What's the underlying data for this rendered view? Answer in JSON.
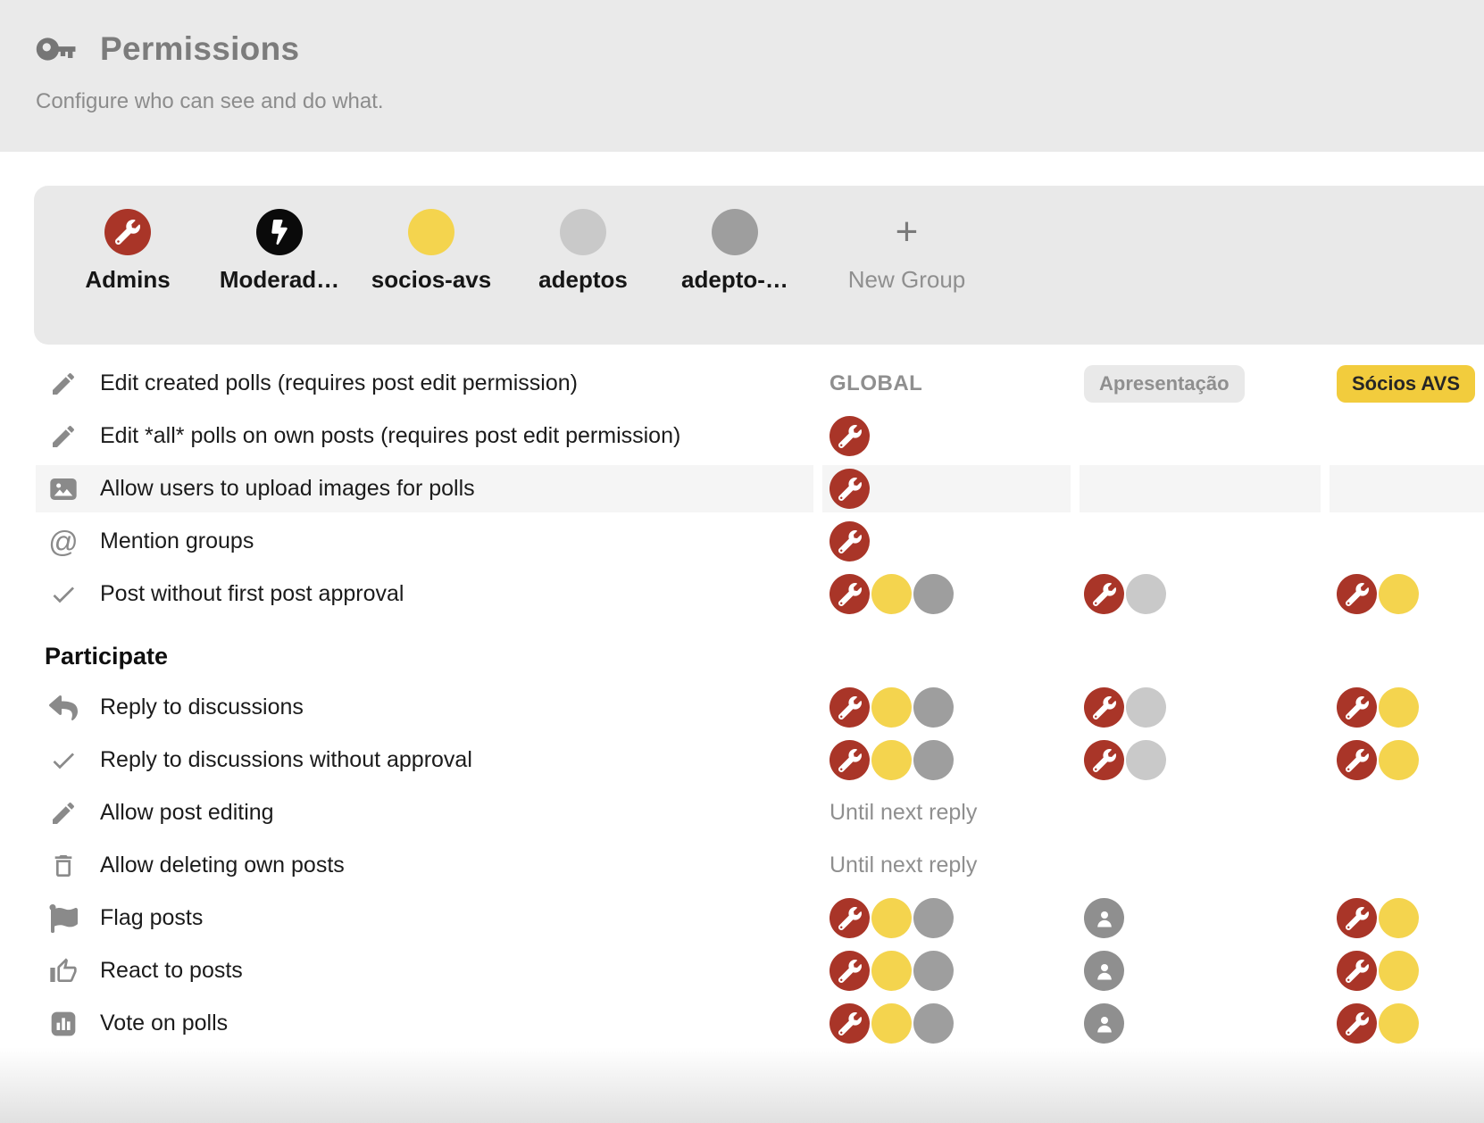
{
  "header": {
    "icon": "key-icon",
    "title": "Permissions",
    "subtitle": "Configure who can see and do what."
  },
  "groups": {
    "items": [
      {
        "name": "Admins",
        "avatar_icon": "wrench-icon",
        "avatar_color": "#a93528"
      },
      {
        "name": "Moderad…",
        "avatar_icon": "bolt-icon",
        "avatar_color": "#0a0a0a"
      },
      {
        "name": "socios-avs",
        "avatar_icon": null,
        "avatar_color": "#f4d44e"
      },
      {
        "name": "adeptos",
        "avatar_icon": null,
        "avatar_color": "#c9c9c9"
      },
      {
        "name": "adepto-…",
        "avatar_icon": null,
        "avatar_color": "#9e9e9e"
      }
    ],
    "new_group": {
      "label": "New Group",
      "icon": "plus-icon"
    }
  },
  "legend_colors": {
    "admins": "#a93528",
    "socios": "#f4d44e",
    "adepto": "#9e9e9e",
    "adeptos": "#c9c9c9",
    "everyone": "#8f8f8f"
  },
  "table": {
    "column_headers": {
      "global": "GLOBAL",
      "category": "Apresentação",
      "tag": "Sócios AVS"
    },
    "rows": [
      {
        "type": "perm",
        "icon": "pencil-icon",
        "label": "Edit created polls (requires post edit permission)",
        "show_column_headers": true,
        "cells": {
          "global": [],
          "category": [],
          "tag": []
        }
      },
      {
        "type": "perm",
        "icon": "pencil-icon",
        "label": "Edit *all* polls on own posts (requires post edit permission)",
        "cells": {
          "global": [
            "admins"
          ],
          "category": [],
          "tag": []
        }
      },
      {
        "type": "perm",
        "icon": "image-icon",
        "label": "Allow users to upload images for polls",
        "highlighted": true,
        "cells": {
          "global": [
            "admins"
          ],
          "category": [],
          "tag": []
        }
      },
      {
        "type": "perm",
        "icon": "at-icon",
        "label": "Mention groups",
        "cells": {
          "global": [
            "admins"
          ],
          "category": [],
          "tag": []
        }
      },
      {
        "type": "perm",
        "icon": "check-icon",
        "label": "Post without first post approval",
        "cells": {
          "global": [
            "admins",
            "socios",
            "adepto"
          ],
          "category": [
            "admins",
            "adeptos"
          ],
          "tag": [
            "admins",
            "socios"
          ]
        }
      },
      {
        "type": "section",
        "label": "Participate"
      },
      {
        "type": "perm",
        "icon": "reply-icon",
        "label": "Reply to discussions",
        "cells": {
          "global": [
            "admins",
            "socios",
            "adepto"
          ],
          "category": [
            "admins",
            "adeptos"
          ],
          "tag": [
            "admins",
            "socios"
          ]
        }
      },
      {
        "type": "perm",
        "icon": "check-icon",
        "label": "Reply to discussions without approval",
        "cells": {
          "global": [
            "admins",
            "socios",
            "adepto"
          ],
          "category": [
            "admins",
            "adeptos"
          ],
          "tag": [
            "admins",
            "socios"
          ]
        }
      },
      {
        "type": "perm",
        "icon": "pencil-icon",
        "label": "Allow post editing",
        "global_text": "Until next reply",
        "cells": {
          "global": [],
          "category": [],
          "tag": []
        }
      },
      {
        "type": "perm",
        "icon": "trash-icon",
        "label": "Allow deleting own posts",
        "global_text": "Until next reply",
        "cells": {
          "global": [],
          "category": [],
          "tag": []
        }
      },
      {
        "type": "perm",
        "icon": "flag-icon",
        "label": "Flag posts",
        "cells": {
          "global": [
            "admins",
            "socios",
            "adepto"
          ],
          "category": [
            "everyone"
          ],
          "tag": [
            "admins",
            "socios"
          ]
        }
      },
      {
        "type": "perm",
        "icon": "thumbs-up-icon",
        "label": "React to posts",
        "cells": {
          "global": [
            "admins",
            "socios",
            "adepto"
          ],
          "category": [
            "everyone"
          ],
          "tag": [
            "admins",
            "socios"
          ]
        }
      },
      {
        "type": "perm",
        "icon": "poll-icon",
        "label": "Vote on polls",
        "cells": {
          "global": [
            "admins",
            "socios",
            "adepto"
          ],
          "category": [
            "everyone"
          ],
          "tag": [
            "admins",
            "socios"
          ]
        }
      }
    ]
  }
}
